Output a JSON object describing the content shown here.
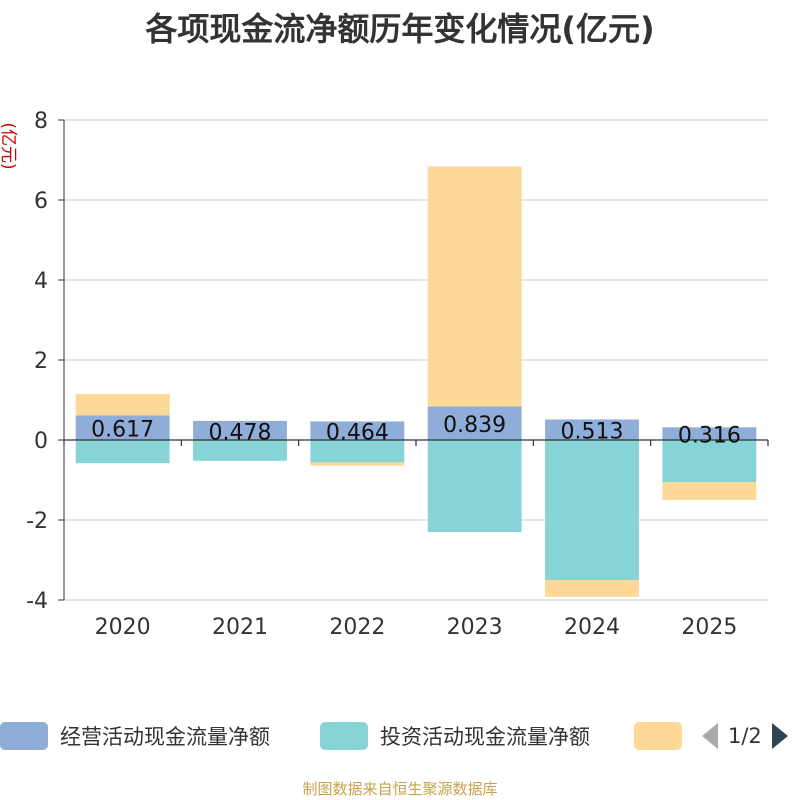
{
  "title": "各项现金流净额历年变化情况(亿元)",
  "source_note": "制图数据来自恒生聚源数据库",
  "legend": {
    "pager": "1/2",
    "prev_icon": "triangle-left-icon",
    "next_icon": "triangle-right-icon"
  },
  "chart_data": {
    "type": "bar",
    "stacked": true,
    "title": "各项现金流净额历年变化情况(亿元)",
    "ylabel": "(亿元)",
    "ylim": [
      -4,
      8
    ],
    "yticks": [
      -4,
      -2,
      0,
      2,
      4,
      6,
      8
    ],
    "grid": true,
    "legend_position": "bottom",
    "categories": [
      "2020",
      "2021",
      "2022",
      "2023",
      "2024",
      "2025"
    ],
    "series": [
      {
        "name": "经营活动现金流量净额",
        "color": "#8eadd8",
        "values": [
          0.617,
          0.478,
          0.464,
          0.839,
          0.513,
          0.316
        ],
        "labels": [
          "0.617",
          "0.478",
          "0.464",
          "0.839",
          "0.513",
          "0.316"
        ]
      },
      {
        "name": "投资活动现金流量净额",
        "color": "#86d4d6",
        "values": [
          -0.58,
          -0.52,
          -0.56,
          -2.3,
          -3.5,
          -1.05
        ]
      },
      {
        "name": "",
        "color": "#fdd896",
        "values": [
          0.53,
          0.0,
          -0.08,
          6.0,
          -0.42,
          -0.45
        ]
      }
    ]
  }
}
